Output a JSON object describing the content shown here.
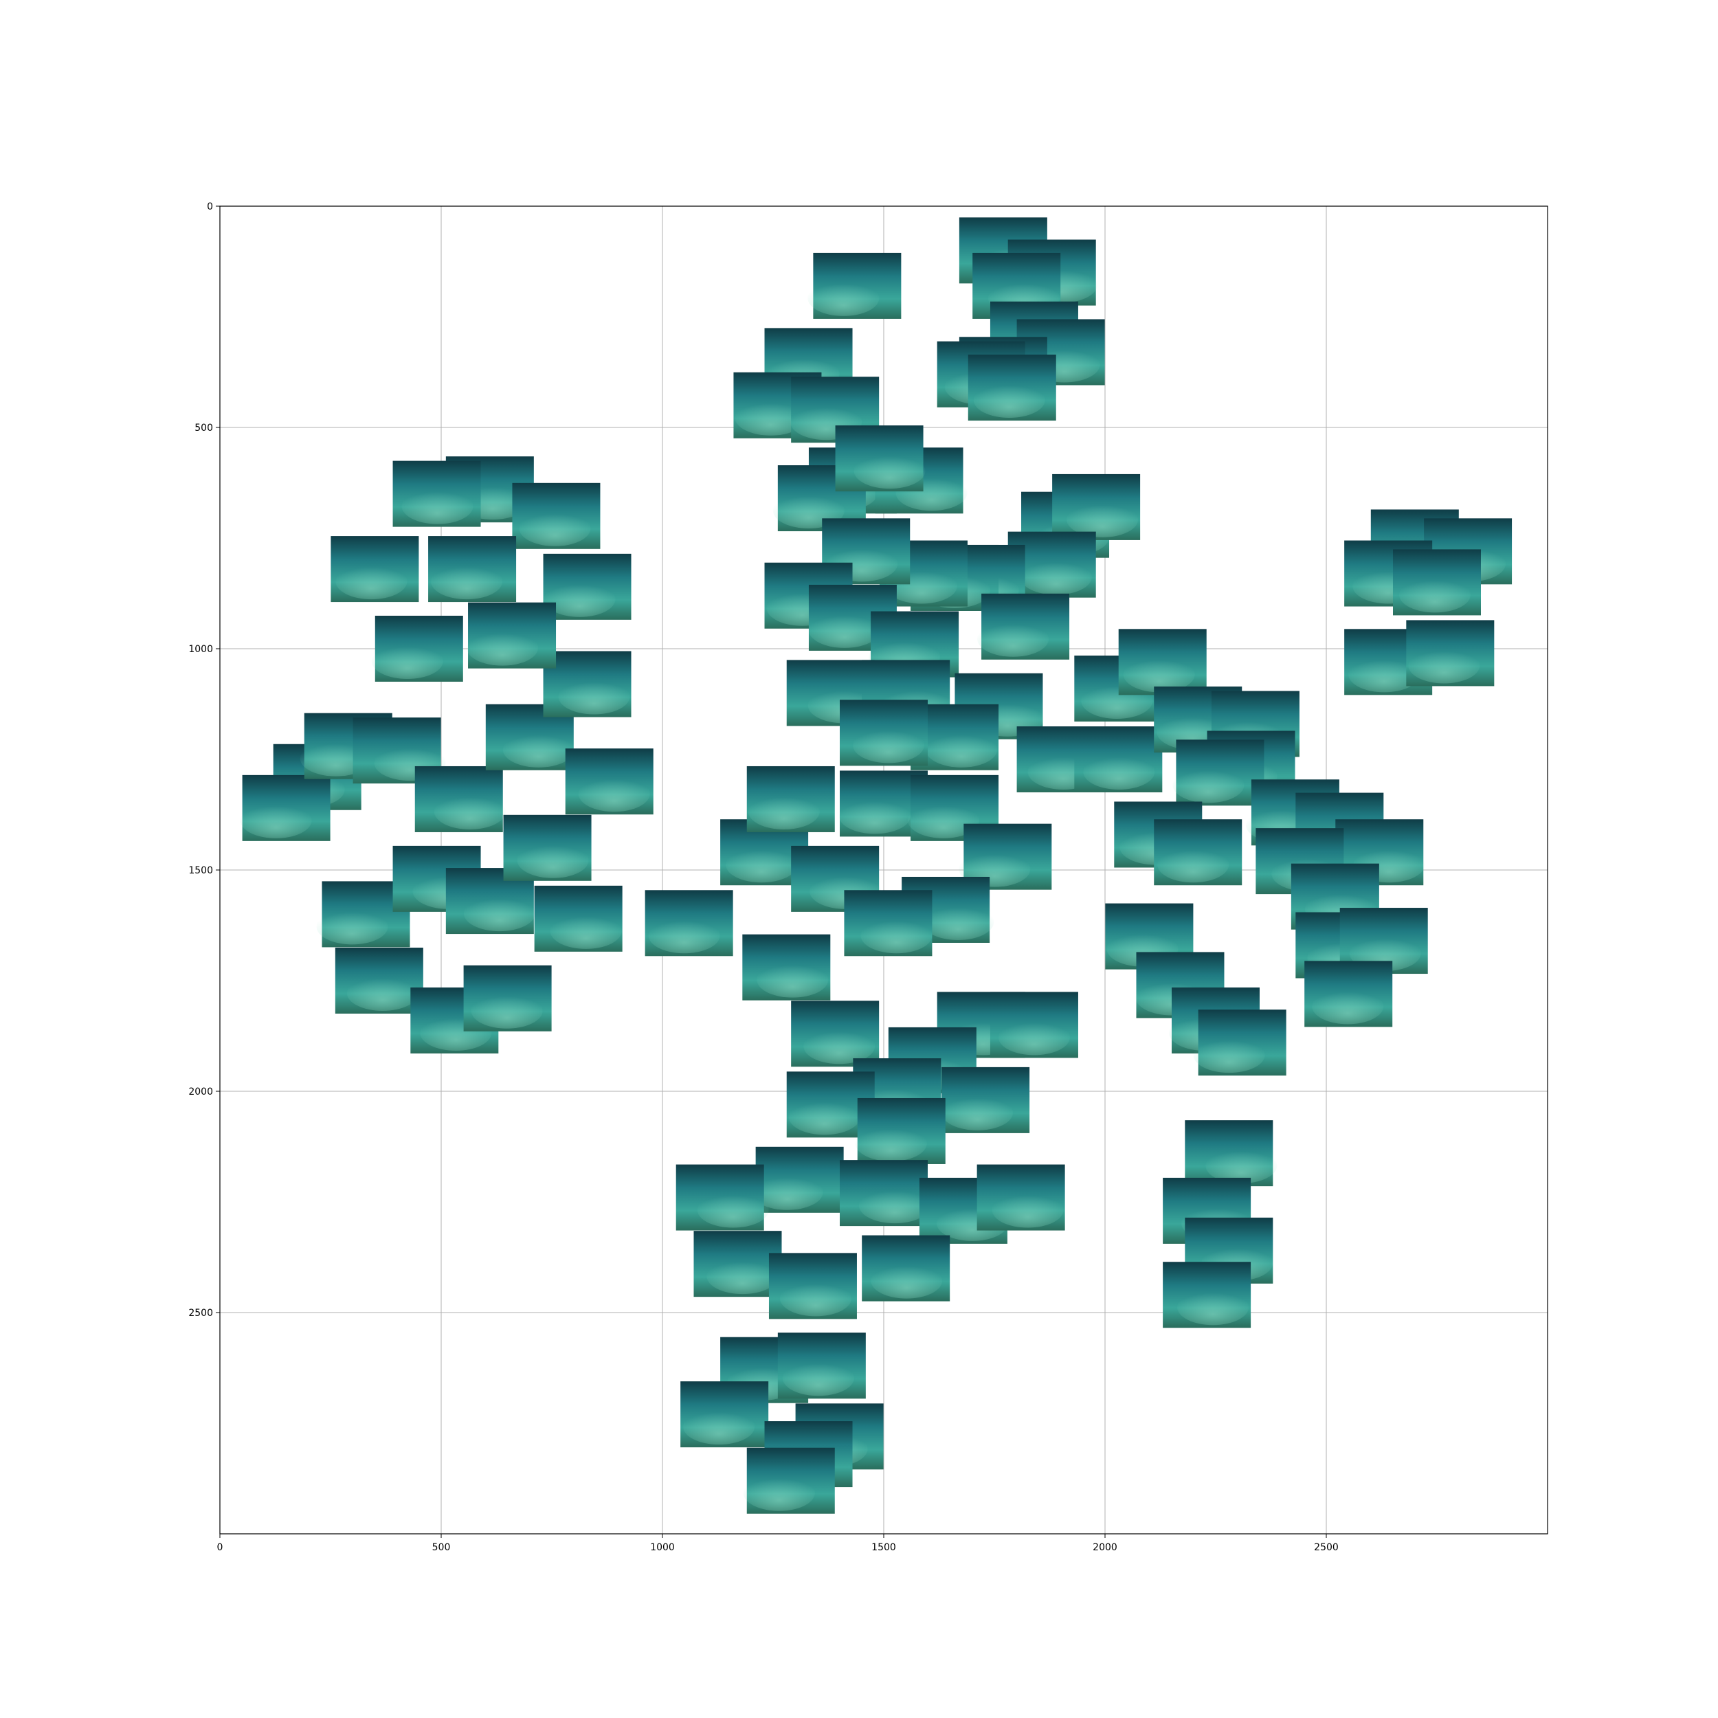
{
  "chart_data": {
    "type": "scatter",
    "title": "",
    "xlabel": "",
    "ylabel": "",
    "xlim": [
      0,
      3000
    ],
    "ylim": [
      3000,
      0
    ],
    "y_inverted": true,
    "grid": true,
    "x_ticks": [
      0,
      500,
      1000,
      1500,
      2000,
      2500
    ],
    "y_ticks": [
      0,
      500,
      1000,
      1500,
      2000,
      2500
    ],
    "x_tick_labels": [
      "0",
      "500",
      "1000",
      "1500",
      "2000",
      "2500"
    ],
    "y_tick_labels": [
      "0",
      "500",
      "1000",
      "1500",
      "2000",
      "2500"
    ],
    "markers": "underwater seabed image thumbnails (teal / blue-green)",
    "points": [
      {
        "x": 1440,
        "y": 180
      },
      {
        "x": 1770,
        "y": 100
      },
      {
        "x": 1880,
        "y": 150
      },
      {
        "x": 1800,
        "y": 180
      },
      {
        "x": 1840,
        "y": 290
      },
      {
        "x": 1900,
        "y": 330
      },
      {
        "x": 1770,
        "y": 370
      },
      {
        "x": 1720,
        "y": 380
      },
      {
        "x": 1790,
        "y": 410
      },
      {
        "x": 1330,
        "y": 350
      },
      {
        "x": 1260,
        "y": 450
      },
      {
        "x": 1390,
        "y": 460
      },
      {
        "x": 1430,
        "y": 620
      },
      {
        "x": 1360,
        "y": 660
      },
      {
        "x": 1580,
        "y": 620
      },
      {
        "x": 1490,
        "y": 570
      },
      {
        "x": 1910,
        "y": 720
      },
      {
        "x": 1980,
        "y": 680
      },
      {
        "x": 1880,
        "y": 810
      },
      {
        "x": 1720,
        "y": 840
      },
      {
        "x": 1660,
        "y": 840
      },
      {
        "x": 1590,
        "y": 830
      },
      {
        "x": 1460,
        "y": 780
      },
      {
        "x": 1330,
        "y": 880
      },
      {
        "x": 1430,
        "y": 930
      },
      {
        "x": 1570,
        "y": 990
      },
      {
        "x": 1820,
        "y": 950
      },
      {
        "x": 1380,
        "y": 1100
      },
      {
        "x": 1550,
        "y": 1100
      },
      {
        "x": 1760,
        "y": 1130
      },
      {
        "x": 1660,
        "y": 1200
      },
      {
        "x": 1500,
        "y": 1190
      },
      {
        "x": 1900,
        "y": 1250
      },
      {
        "x": 2030,
        "y": 1250
      },
      {
        "x": 2030,
        "y": 1090
      },
      {
        "x": 2130,
        "y": 1030
      },
      {
        "x": 2210,
        "y": 1160
      },
      {
        "x": 2340,
        "y": 1170
      },
      {
        "x": 2330,
        "y": 1260
      },
      {
        "x": 2260,
        "y": 1280
      },
      {
        "x": 2430,
        "y": 1370
      },
      {
        "x": 2530,
        "y": 1400
      },
      {
        "x": 2620,
        "y": 1460
      },
      {
        "x": 2440,
        "y": 1480
      },
      {
        "x": 2520,
        "y": 1560
      },
      {
        "x": 2530,
        "y": 1670
      },
      {
        "x": 2630,
        "y": 1660
      },
      {
        "x": 2550,
        "y": 1780
      },
      {
        "x": 2120,
        "y": 1420
      },
      {
        "x": 2210,
        "y": 1460
      },
      {
        "x": 2100,
        "y": 1650
      },
      {
        "x": 2170,
        "y": 1760
      },
      {
        "x": 2250,
        "y": 1840
      },
      {
        "x": 2310,
        "y": 1890
      },
      {
        "x": 2280,
        "y": 2140
      },
      {
        "x": 2230,
        "y": 2270
      },
      {
        "x": 2280,
        "y": 2360
      },
      {
        "x": 2230,
        "y": 2460
      },
      {
        "x": 2700,
        "y": 760
      },
      {
        "x": 2820,
        "y": 780
      },
      {
        "x": 2640,
        "y": 830
      },
      {
        "x": 2750,
        "y": 850
      },
      {
        "x": 2640,
        "y": 1030
      },
      {
        "x": 2780,
        "y": 1010
      },
      {
        "x": 220,
        "y": 1290
      },
      {
        "x": 150,
        "y": 1360
      },
      {
        "x": 290,
        "y": 1220
      },
      {
        "x": 400,
        "y": 1230
      },
      {
        "x": 540,
        "y": 1340
      },
      {
        "x": 700,
        "y": 1200
      },
      {
        "x": 830,
        "y": 1080
      },
      {
        "x": 880,
        "y": 1300
      },
      {
        "x": 610,
        "y": 640
      },
      {
        "x": 490,
        "y": 650
      },
      {
        "x": 760,
        "y": 700
      },
      {
        "x": 350,
        "y": 820
      },
      {
        "x": 570,
        "y": 820
      },
      {
        "x": 830,
        "y": 860
      },
      {
        "x": 660,
        "y": 970
      },
      {
        "x": 450,
        "y": 1000
      },
      {
        "x": 330,
        "y": 1600
      },
      {
        "x": 490,
        "y": 1520
      },
      {
        "x": 610,
        "y": 1570
      },
      {
        "x": 810,
        "y": 1610
      },
      {
        "x": 740,
        "y": 1450
      },
      {
        "x": 360,
        "y": 1750
      },
      {
        "x": 530,
        "y": 1840
      },
      {
        "x": 650,
        "y": 1790
      },
      {
        "x": 1230,
        "y": 1460
      },
      {
        "x": 1060,
        "y": 1620
      },
      {
        "x": 1290,
        "y": 1340
      },
      {
        "x": 1500,
        "y": 1350
      },
      {
        "x": 1660,
        "y": 1360
      },
      {
        "x": 1780,
        "y": 1470
      },
      {
        "x": 1640,
        "y": 1590
      },
      {
        "x": 1390,
        "y": 1520
      },
      {
        "x": 1510,
        "y": 1620
      },
      {
        "x": 1280,
        "y": 1720
      },
      {
        "x": 1390,
        "y": 1870
      },
      {
        "x": 1720,
        "y": 1850
      },
      {
        "x": 1840,
        "y": 1850
      },
      {
        "x": 1610,
        "y": 1930
      },
      {
        "x": 1530,
        "y": 2000
      },
      {
        "x": 1380,
        "y": 2030
      },
      {
        "x": 1730,
        "y": 2020
      },
      {
        "x": 1540,
        "y": 2090
      },
      {
        "x": 1310,
        "y": 2200
      },
      {
        "x": 1130,
        "y": 2240
      },
      {
        "x": 1500,
        "y": 2230
      },
      {
        "x": 1680,
        "y": 2270
      },
      {
        "x": 1810,
        "y": 2240
      },
      {
        "x": 1170,
        "y": 2390
      },
      {
        "x": 1340,
        "y": 2440
      },
      {
        "x": 1550,
        "y": 2400
      },
      {
        "x": 1230,
        "y": 2630
      },
      {
        "x": 1360,
        "y": 2620
      },
      {
        "x": 1140,
        "y": 2730
      },
      {
        "x": 1400,
        "y": 2780
      },
      {
        "x": 1330,
        "y": 2820
      },
      {
        "x": 1290,
        "y": 2880
      }
    ]
  }
}
